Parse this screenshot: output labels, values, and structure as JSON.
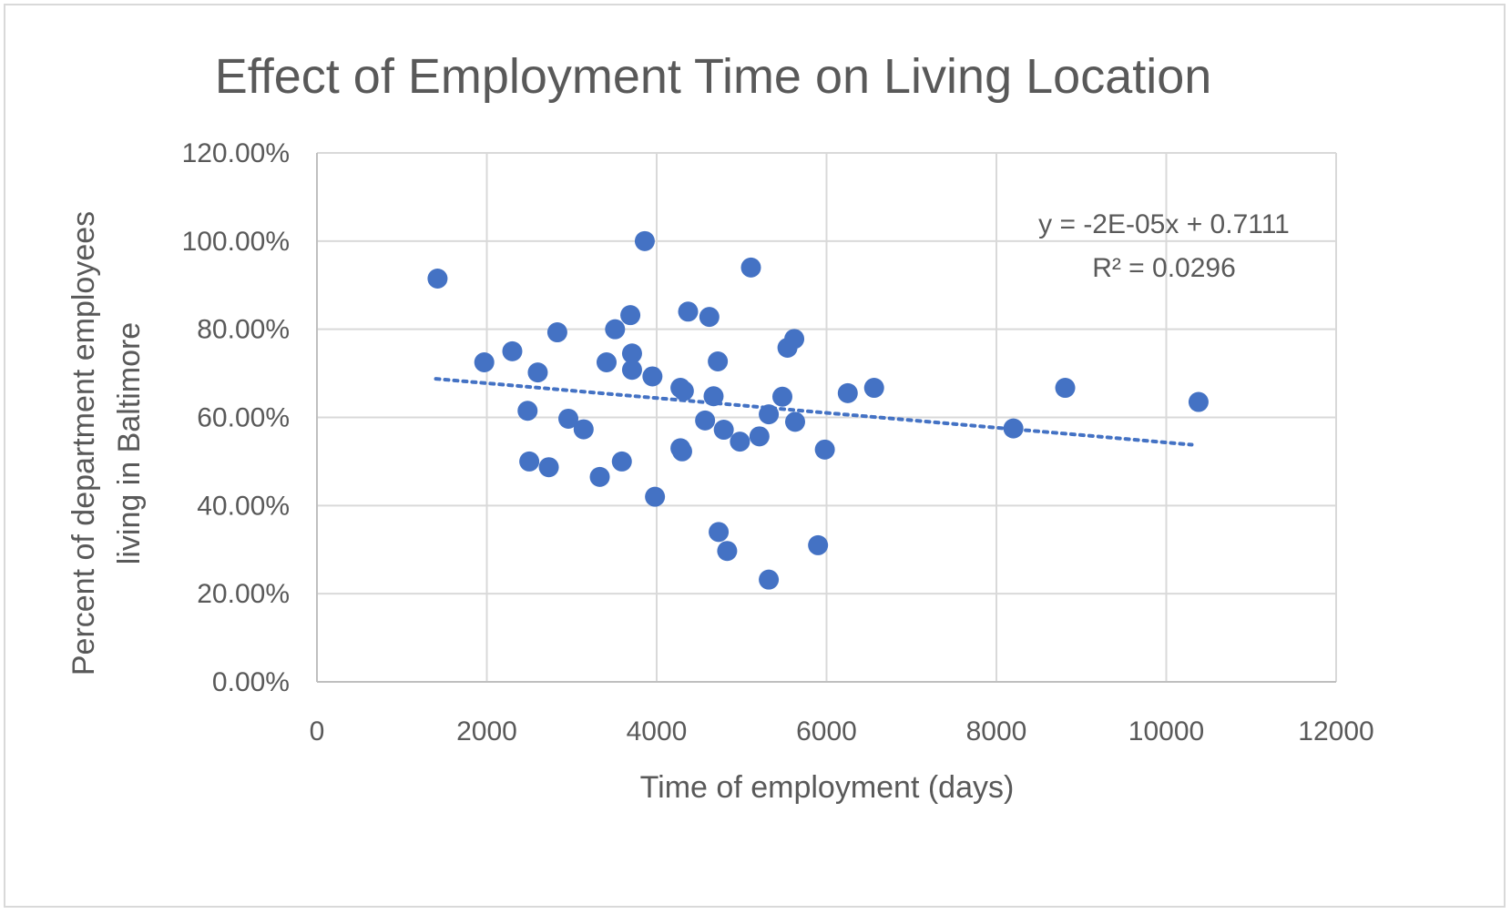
{
  "chart_data": {
    "type": "scatter",
    "title": "Effect of Employment Time on Living Location",
    "xlabel": "Time of employment (days)",
    "ylabel_lines": [
      "Percent of department employees",
      "living in Baltimore"
    ],
    "xlim": [
      0,
      12000
    ],
    "ylim": [
      0,
      1.2
    ],
    "x_ticks": [
      0,
      2000,
      4000,
      6000,
      8000,
      10000,
      12000
    ],
    "x_tick_labels": [
      "0",
      "2000",
      "4000",
      "6000",
      "8000",
      "10000",
      "12000"
    ],
    "y_ticks": [
      0,
      0.2,
      0.4,
      0.6,
      0.8,
      1.0,
      1.2
    ],
    "y_tick_labels": [
      "0.00%",
      "20.00%",
      "40.00%",
      "60.00%",
      "80.00%",
      "100.00%",
      "120.00%"
    ],
    "grid": true,
    "legend": "none",
    "marker_color": "#4472c4",
    "trendline": {
      "type": "linear",
      "style": "dotted",
      "color": "#4472c4",
      "x_start": 1400,
      "x_end": 10300,
      "slope": -1.68e-05,
      "intercept": 0.7111,
      "equation_label": "y = -2E-05x + 0.7111",
      "r2_label": "R² = 0.0296"
    },
    "series": [
      {
        "points": [
          [
            1420,
            0.915
          ],
          [
            1970,
            0.725
          ],
          [
            2300,
            0.75
          ],
          [
            2480,
            0.615
          ],
          [
            2500,
            0.5
          ],
          [
            2600,
            0.702
          ],
          [
            2730,
            0.487
          ],
          [
            2830,
            0.793
          ],
          [
            2960,
            0.597
          ],
          [
            3140,
            0.573
          ],
          [
            3330,
            0.465
          ],
          [
            3410,
            0.725
          ],
          [
            3510,
            0.8
          ],
          [
            3590,
            0.5
          ],
          [
            3690,
            0.832
          ],
          [
            3710,
            0.745
          ],
          [
            3710,
            0.708
          ],
          [
            3860,
            1.0
          ],
          [
            3950,
            0.693
          ],
          [
            3980,
            0.42
          ],
          [
            4280,
            0.667
          ],
          [
            4280,
            0.53
          ],
          [
            4300,
            0.523
          ],
          [
            4320,
            0.66
          ],
          [
            4370,
            0.84
          ],
          [
            4570,
            0.593
          ],
          [
            4620,
            0.828
          ],
          [
            4670,
            0.648
          ],
          [
            4720,
            0.727
          ],
          [
            4730,
            0.34
          ],
          [
            4790,
            0.572
          ],
          [
            4830,
            0.297
          ],
          [
            4980,
            0.545
          ],
          [
            5110,
            0.94
          ],
          [
            5210,
            0.557
          ],
          [
            5320,
            0.607
          ],
          [
            5320,
            0.232
          ],
          [
            5480,
            0.647
          ],
          [
            5540,
            0.758
          ],
          [
            5620,
            0.778
          ],
          [
            5630,
            0.59
          ],
          [
            5900,
            0.31
          ],
          [
            5980,
            0.527
          ],
          [
            6250,
            0.655
          ],
          [
            6560,
            0.667
          ],
          [
            8200,
            0.575
          ],
          [
            8810,
            0.667
          ],
          [
            10380,
            0.635
          ]
        ]
      }
    ]
  }
}
